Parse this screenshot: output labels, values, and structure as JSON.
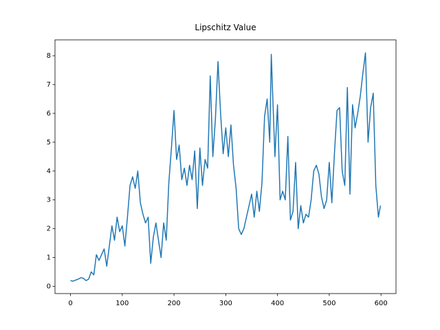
{
  "chart_data": {
    "type": "line",
    "title": "Lipschitz Value",
    "x": [
      0,
      5,
      10,
      15,
      20,
      25,
      30,
      35,
      40,
      45,
      50,
      55,
      60,
      65,
      70,
      75,
      80,
      85,
      90,
      95,
      100,
      105,
      110,
      115,
      120,
      125,
      130,
      135,
      140,
      145,
      150,
      155,
      160,
      165,
      170,
      175,
      180,
      185,
      190,
      195,
      200,
      205,
      210,
      215,
      220,
      225,
      230,
      235,
      240,
      245,
      250,
      255,
      260,
      265,
      270,
      275,
      280,
      285,
      290,
      295,
      300,
      305,
      310,
      315,
      320,
      325,
      330,
      335,
      340,
      345,
      350,
      355,
      360,
      365,
      370,
      375,
      380,
      385,
      388,
      390,
      395,
      400,
      405,
      410,
      415,
      420,
      425,
      430,
      435,
      440,
      445,
      450,
      455,
      460,
      465,
      470,
      475,
      480,
      485,
      490,
      495,
      500,
      505,
      510,
      515,
      520,
      525,
      530,
      535,
      540,
      545,
      550,
      555,
      560,
      565,
      570,
      575,
      580,
      585,
      590,
      595,
      599
    ],
    "series": [
      {
        "name": "Lipschitz Value",
        "color": "#1f77b4",
        "values": [
          0.2,
          0.18,
          0.22,
          0.25,
          0.3,
          0.28,
          0.2,
          0.25,
          0.5,
          0.4,
          1.1,
          0.9,
          1.1,
          1.3,
          0.7,
          1.4,
          2.1,
          1.6,
          2.4,
          1.9,
          2.1,
          1.4,
          2.4,
          3.5,
          3.8,
          3.4,
          4.0,
          2.9,
          2.5,
          2.2,
          2.4,
          0.8,
          1.7,
          2.2,
          1.6,
          1.0,
          2.2,
          1.6,
          3.6,
          4.8,
          6.1,
          4.4,
          4.9,
          3.7,
          4.1,
          3.5,
          4.2,
          3.7,
          4.7,
          2.7,
          4.8,
          3.5,
          4.4,
          4.1,
          7.3,
          4.5,
          5.8,
          7.8,
          6.0,
          4.6,
          5.5,
          4.5,
          5.6,
          4.2,
          3.4,
          2.0,
          1.8,
          2.0,
          2.4,
          2.8,
          3.2,
          2.4,
          3.3,
          2.6,
          3.6,
          5.9,
          6.5,
          5.0,
          8.05,
          7.0,
          4.5,
          6.3,
          3.0,
          3.3,
          3.0,
          5.2,
          2.3,
          2.6,
          4.3,
          2.0,
          2.8,
          2.2,
          2.5,
          2.4,
          3.0,
          4.0,
          4.2,
          3.9,
          3.1,
          2.7,
          3.0,
          4.3,
          2.9,
          4.6,
          6.1,
          6.2,
          4.0,
          3.5,
          6.9,
          3.2,
          6.3,
          5.5,
          6.0,
          6.6,
          7.4,
          8.1,
          5.0,
          6.2,
          6.7,
          3.5,
          2.4,
          2.8
        ]
      }
    ],
    "xlim": [
      -30,
      629
    ],
    "ylim": [
      -0.25,
      8.55
    ],
    "xticks": [
      0,
      100,
      200,
      300,
      400,
      500,
      600
    ],
    "yticks": [
      0,
      1,
      2,
      3,
      4,
      5,
      6,
      7,
      8
    ]
  }
}
